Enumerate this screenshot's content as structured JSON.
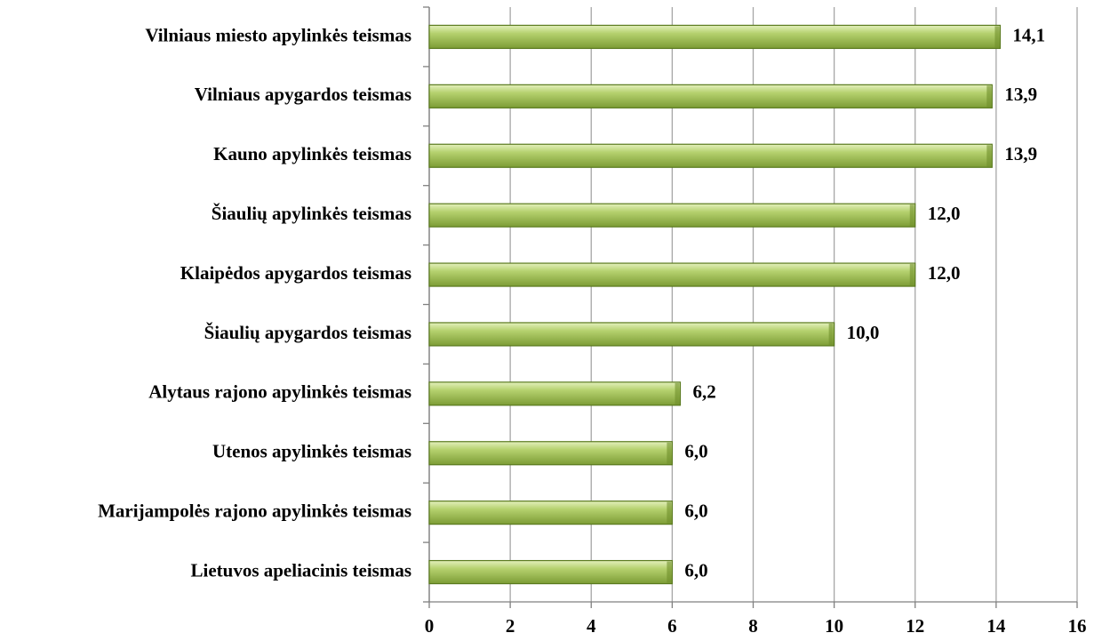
{
  "chart_data": {
    "type": "hbar",
    "categories": [
      "Vilniaus miesto apylinkės teismas",
      "Vilniaus apygardos teismas",
      "Kauno apylinkės teismas",
      "Šiaulių apylinkės teismas",
      "Klaipėdos apygardos teismas",
      "Šiaulių apygardos teismas",
      "Alytaus rajono apylinkės teismas",
      "Utenos apylinkės teismas",
      "Marijampolės rajono apylinkės teismas",
      "Lietuvos apeliacinis teismas"
    ],
    "values": [
      14.1,
      13.9,
      13.9,
      12.0,
      12.0,
      10.0,
      6.2,
      6.0,
      6.0,
      6.0
    ],
    "value_labels": [
      "14,1",
      "13,9",
      "13,9",
      "12,0",
      "12,0",
      "10,0",
      "6,2",
      "6,0",
      "6,0",
      "6,0"
    ],
    "color": "#9bbb59",
    "xlim": [
      0,
      16
    ],
    "xticks": [
      0,
      2,
      4,
      6,
      8,
      10,
      12,
      14,
      16
    ],
    "grid": true
  }
}
